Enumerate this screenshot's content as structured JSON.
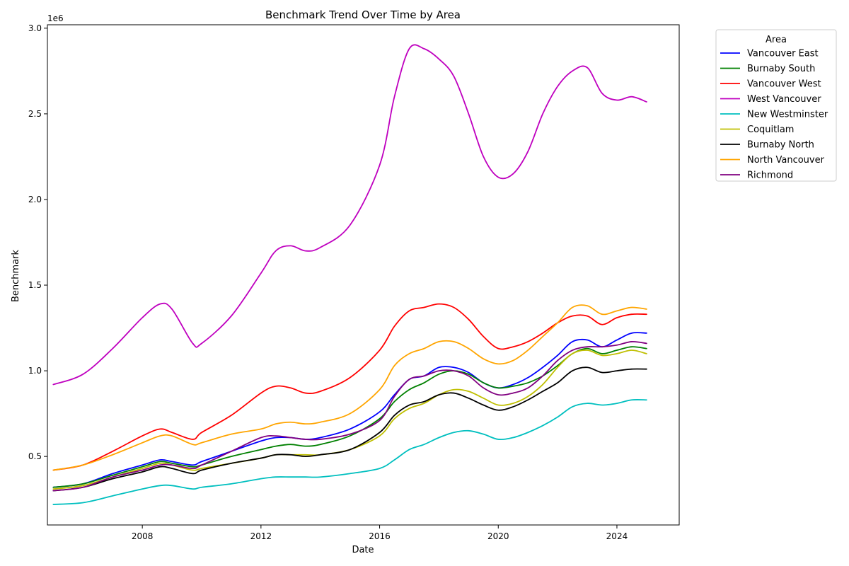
{
  "chart_data": {
    "type": "line",
    "title": "Benchmark Trend Over Time by Area",
    "xlabel": "Date",
    "ylabel": "Benchmark",
    "y_offset_text": "1e6",
    "xlim": [
      2004.8,
      2026.1
    ],
    "ylim": [
      0.1,
      3.02
    ],
    "x_ticks": [
      2008,
      2012,
      2016,
      2020,
      2024
    ],
    "y_ticks": [
      0.5,
      1.0,
      1.5,
      2.0,
      2.5,
      3.0
    ],
    "x_tick_labels": [
      "2008",
      "2012",
      "2016",
      "2020",
      "2024"
    ],
    "y_tick_labels": [
      "0.5",
      "1.0",
      "1.5",
      "2.0",
      "2.5",
      "3.0"
    ],
    "grid": false,
    "legend": {
      "title": "Area",
      "placement": "outside-right"
    },
    "x": [
      2005,
      2006,
      2007,
      2008,
      2008.6,
      2009,
      2009.7,
      2010,
      2011,
      2012,
      2012.5,
      2013,
      2013.5,
      2014,
      2015,
      2016,
      2016.5,
      2017,
      2017.5,
      2018,
      2018.5,
      2019,
      2019.5,
      2020,
      2020.5,
      2021,
      2021.5,
      2022,
      2022.5,
      2023,
      2023.5,
      2024,
      2024.5,
      2025
    ],
    "series": [
      {
        "name": "Vancouver East",
        "color": "#0000ff",
        "values": [
          0.32,
          0.34,
          0.4,
          0.45,
          0.48,
          0.47,
          0.45,
          0.47,
          0.53,
          0.59,
          0.61,
          0.61,
          0.6,
          0.61,
          0.66,
          0.76,
          0.86,
          0.95,
          0.97,
          1.02,
          1.02,
          0.99,
          0.93,
          0.9,
          0.92,
          0.96,
          1.02,
          1.09,
          1.17,
          1.18,
          1.14,
          1.18,
          1.22,
          1.22
        ]
      },
      {
        "name": "Burnaby South",
        "color": "#008000",
        "values": [
          0.32,
          0.34,
          0.39,
          0.44,
          0.47,
          0.46,
          0.44,
          0.45,
          0.5,
          0.54,
          0.56,
          0.57,
          0.56,
          0.57,
          0.62,
          0.72,
          0.82,
          0.89,
          0.93,
          0.98,
          1.0,
          0.98,
          0.93,
          0.9,
          0.91,
          0.93,
          0.97,
          1.03,
          1.1,
          1.13,
          1.1,
          1.12,
          1.14,
          1.13
        ]
      },
      {
        "name": "Vancouver West",
        "color": "#ff0000",
        "values": [
          0.42,
          0.45,
          0.53,
          0.62,
          0.66,
          0.64,
          0.6,
          0.64,
          0.74,
          0.87,
          0.91,
          0.9,
          0.87,
          0.88,
          0.96,
          1.12,
          1.26,
          1.35,
          1.37,
          1.39,
          1.37,
          1.3,
          1.2,
          1.13,
          1.14,
          1.17,
          1.22,
          1.28,
          1.32,
          1.32,
          1.27,
          1.31,
          1.33,
          1.33
        ]
      },
      {
        "name": "West Vancouver",
        "color": "#bf00bf",
        "values": [
          0.92,
          0.98,
          1.13,
          1.31,
          1.39,
          1.36,
          1.16,
          1.16,
          1.32,
          1.57,
          1.7,
          1.73,
          1.7,
          1.72,
          1.85,
          2.2,
          2.6,
          2.88,
          2.88,
          2.82,
          2.72,
          2.5,
          2.25,
          2.13,
          2.15,
          2.28,
          2.5,
          2.66,
          2.75,
          2.77,
          2.62,
          2.58,
          2.6,
          2.57
        ]
      },
      {
        "name": "New Westminster",
        "color": "#00bfbf",
        "values": [
          0.22,
          0.23,
          0.27,
          0.31,
          0.33,
          0.33,
          0.31,
          0.32,
          0.34,
          0.37,
          0.38,
          0.38,
          0.38,
          0.38,
          0.4,
          0.43,
          0.48,
          0.54,
          0.57,
          0.61,
          0.64,
          0.65,
          0.63,
          0.6,
          0.61,
          0.64,
          0.68,
          0.73,
          0.79,
          0.81,
          0.8,
          0.81,
          0.83,
          0.83
        ]
      },
      {
        "name": "Coquitlam",
        "color": "#bfbf00",
        "values": [
          0.31,
          0.33,
          0.38,
          0.43,
          0.46,
          0.45,
          0.42,
          0.43,
          0.46,
          0.49,
          0.51,
          0.51,
          0.51,
          0.51,
          0.54,
          0.62,
          0.72,
          0.78,
          0.81,
          0.86,
          0.89,
          0.88,
          0.84,
          0.8,
          0.81,
          0.85,
          0.92,
          1.02,
          1.1,
          1.12,
          1.09,
          1.1,
          1.12,
          1.1
        ]
      },
      {
        "name": "Burnaby North",
        "color": "#000000",
        "values": [
          0.3,
          0.32,
          0.37,
          0.41,
          0.44,
          0.43,
          0.4,
          0.42,
          0.46,
          0.49,
          0.51,
          0.51,
          0.5,
          0.51,
          0.54,
          0.64,
          0.74,
          0.8,
          0.82,
          0.86,
          0.87,
          0.84,
          0.8,
          0.77,
          0.79,
          0.83,
          0.88,
          0.93,
          1.0,
          1.02,
          0.99,
          1.0,
          1.01,
          1.01
        ]
      },
      {
        "name": "North Vancouver",
        "color": "#ffa500",
        "values": [
          0.42,
          0.45,
          0.51,
          0.58,
          0.62,
          0.62,
          0.57,
          0.58,
          0.63,
          0.66,
          0.69,
          0.7,
          0.69,
          0.7,
          0.75,
          0.89,
          1.03,
          1.1,
          1.13,
          1.17,
          1.17,
          1.13,
          1.07,
          1.04,
          1.06,
          1.12,
          1.2,
          1.28,
          1.37,
          1.38,
          1.33,
          1.35,
          1.37,
          1.36
        ]
      },
      {
        "name": "Richmond",
        "color": "#800080",
        "values": [
          0.3,
          0.32,
          0.38,
          0.42,
          0.45,
          0.45,
          0.43,
          0.45,
          0.53,
          0.61,
          0.62,
          0.61,
          0.6,
          0.6,
          0.63,
          0.71,
          0.85,
          0.95,
          0.97,
          1.0,
          1.0,
          0.97,
          0.9,
          0.86,
          0.87,
          0.9,
          0.97,
          1.06,
          1.12,
          1.14,
          1.14,
          1.15,
          1.17,
          1.16
        ]
      }
    ]
  }
}
